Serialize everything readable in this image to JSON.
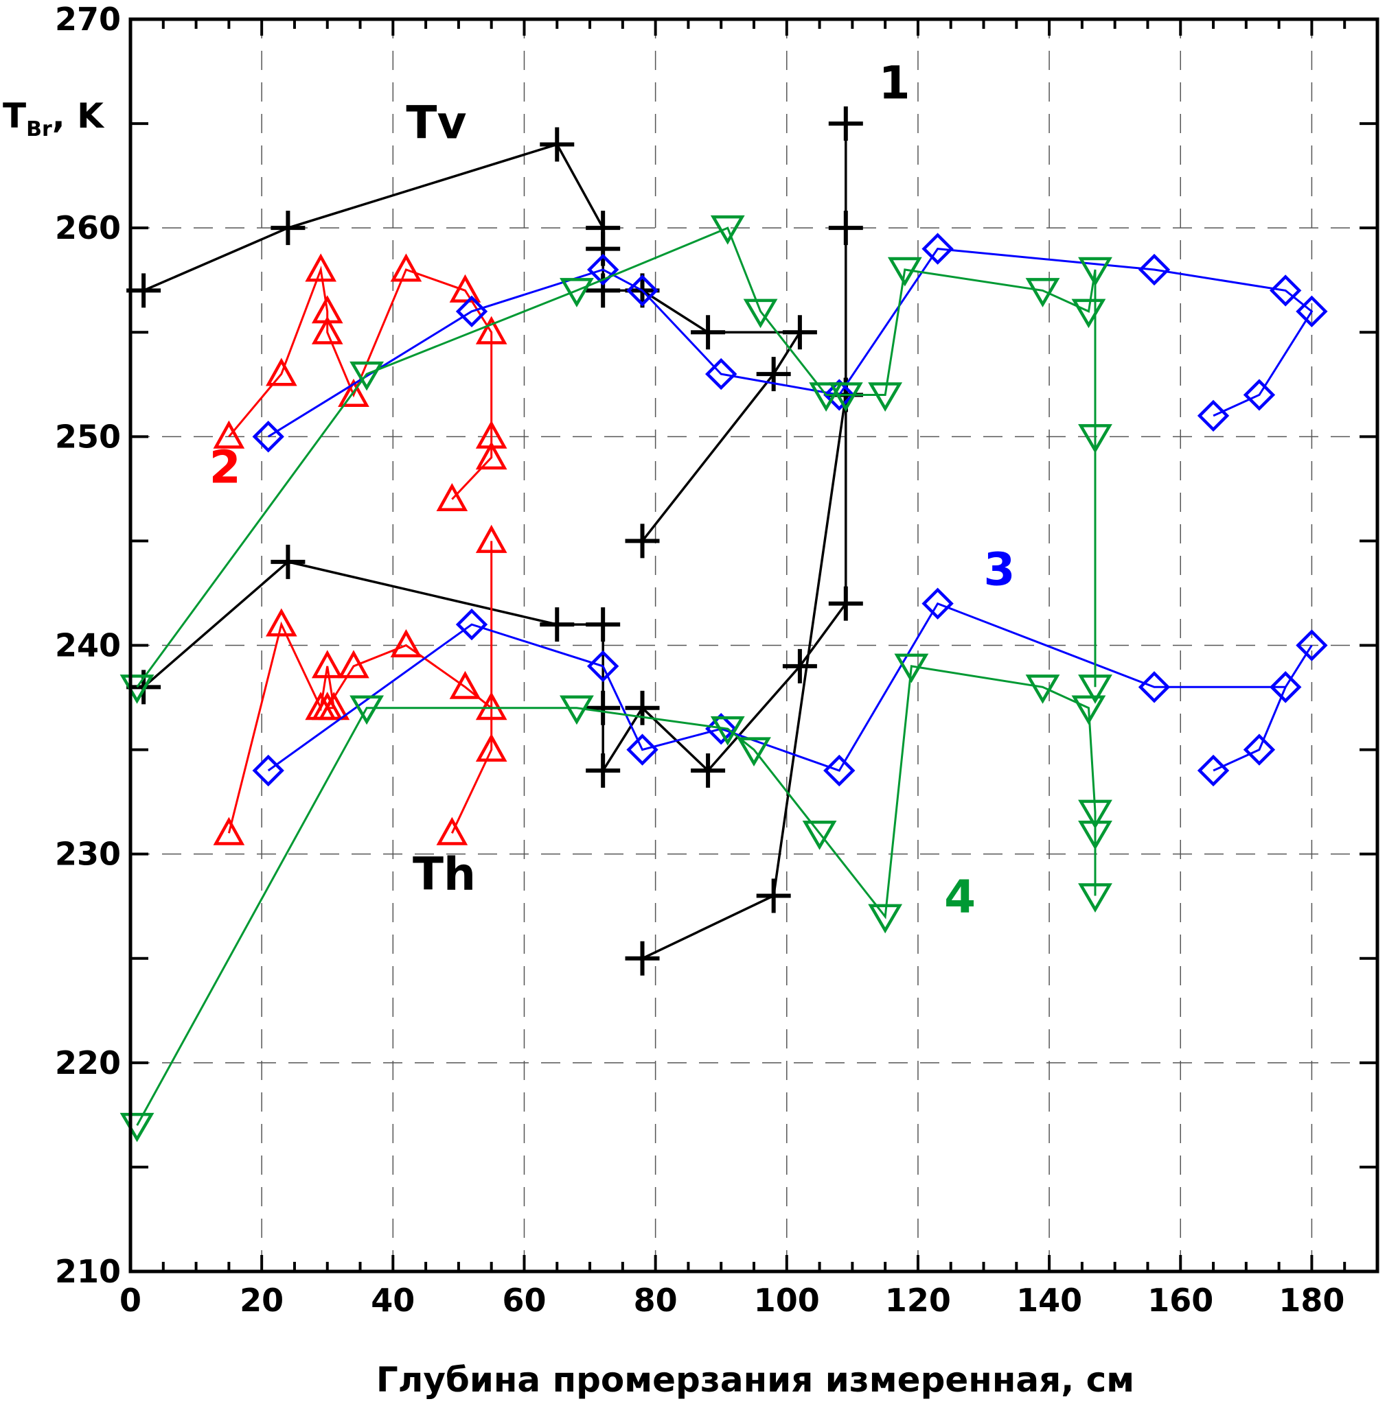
{
  "chart_data": {
    "type": "scatter",
    "title": "",
    "xlabel": "Глубина промерзания измеренная, см",
    "ylabel": {
      "main": "T",
      "sub": "Br",
      "suffix": ", K"
    },
    "xlim": [
      0,
      190
    ],
    "ylim": [
      210,
      270
    ],
    "xticks": [
      0,
      20,
      40,
      60,
      80,
      100,
      120,
      140,
      160,
      180
    ],
    "yticks": [
      210,
      220,
      230,
      240,
      250,
      260,
      270
    ],
    "grid": "dashed",
    "annotations": [
      {
        "text": "Tv",
        "x": 42,
        "y": 264.3,
        "color": "#000000"
      },
      {
        "text": "Th",
        "x": 43,
        "y": 228.3,
        "color": "#000000"
      },
      {
        "text": "1",
        "x": 114,
        "y": 266.2,
        "color": "#000000"
      },
      {
        "text": "2",
        "x": 12,
        "y": 247.8,
        "color": "#ff0000"
      },
      {
        "text": "3",
        "x": 130,
        "y": 242.9,
        "color": "#0000ff"
      },
      {
        "text": "4",
        "x": 124,
        "y": 227.2,
        "color": "#009933"
      }
    ],
    "series": [
      {
        "id": "1",
        "color": "#000000",
        "marker": "plus",
        "polarization": "Tv",
        "x": [
          2,
          24,
          65,
          72,
          72,
          72,
          78,
          88,
          102,
          98,
          78
        ],
        "y": [
          257,
          260,
          264,
          260,
          259,
          257,
          257,
          255,
          255,
          253,
          245
        ]
      },
      {
        "id": "1",
        "color": "#000000",
        "marker": "plus",
        "polarization": "Tv",
        "x": [
          109,
          109,
          109
        ],
        "y": [
          265,
          260,
          252
        ]
      },
      {
        "id": "1",
        "color": "#000000",
        "marker": "plus",
        "polarization": "Th",
        "x": [
          2,
          24,
          65,
          72,
          72,
          72,
          78,
          88,
          102,
          109,
          109
        ],
        "y": [
          238,
          244,
          241,
          241,
          237,
          234,
          237,
          234,
          239,
          242,
          252
        ]
      },
      {
        "id": "1",
        "color": "#000000",
        "marker": "plus",
        "polarization": "Th",
        "x": [
          78,
          98,
          109
        ],
        "y": [
          225,
          228,
          252
        ]
      },
      {
        "id": "2",
        "color": "#ff0000",
        "marker": "triangle-up",
        "polarization": "Tv",
        "x": [
          15,
          23,
          29,
          30,
          30,
          34,
          42,
          51,
          55,
          55,
          55,
          49
        ],
        "y": [
          250,
          253,
          258,
          256,
          255,
          252,
          258,
          257,
          255,
          250,
          249,
          247
        ]
      },
      {
        "id": "2",
        "color": "#ff0000",
        "marker": "triangle-up",
        "polarization": "Th",
        "x": [
          15,
          23,
          29,
          30,
          31,
          30,
          34,
          42,
          51,
          55,
          55,
          55,
          49
        ],
        "y": [
          231,
          241,
          237,
          239,
          237,
          237,
          239,
          240,
          238,
          237,
          245,
          235,
          231
        ]
      },
      {
        "id": "3",
        "color": "#0000ff",
        "marker": "diamond",
        "polarization": "Tv",
        "x": [
          21,
          52,
          72,
          78,
          90,
          108,
          123,
          156,
          176,
          180,
          172,
          165
        ],
        "y": [
          250,
          256,
          258,
          257,
          253,
          252,
          259,
          258,
          257,
          256,
          252,
          251
        ]
      },
      {
        "id": "3",
        "color": "#0000ff",
        "marker": "diamond",
        "polarization": "Th",
        "x": [
          21,
          52,
          72,
          78,
          90,
          108,
          123,
          156,
          176,
          180,
          176,
          172,
          165
        ],
        "y": [
          234,
          241,
          239,
          235,
          236,
          234,
          242,
          238,
          238,
          240,
          238,
          235,
          234
        ]
      },
      {
        "id": "4",
        "color": "#009933",
        "marker": "triangle-down",
        "polarization": "Tv",
        "x": [
          1,
          36,
          68,
          91,
          96,
          106,
          109,
          115,
          118,
          139,
          146,
          147,
          147,
          147
        ],
        "y": [
          238,
          253,
          257,
          260,
          256,
          252,
          252,
          252,
          258,
          257,
          256,
          258,
          250,
          238
        ]
      },
      {
        "id": "4",
        "color": "#009933",
        "marker": "triangle-down",
        "polarization": "Th",
        "x": [
          1,
          36,
          68,
          91,
          95,
          105,
          115,
          119,
          139,
          146,
          147,
          147,
          147
        ],
        "y": [
          217,
          237,
          237,
          236,
          235,
          231,
          227,
          239,
          238,
          237,
          232,
          231,
          228
        ]
      }
    ]
  }
}
